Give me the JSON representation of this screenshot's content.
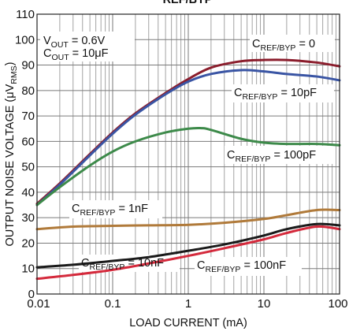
{
  "chart_data": {
    "type": "line",
    "title": "REF/BYP",
    "xlabel": "LOAD CURRENT (mA)",
    "ylabel": {
      "main": "OUTPUT NOISE VOLTAGE (μV",
      "sub": "RMS",
      "tail": ")"
    },
    "xscale": "log",
    "xlim": [
      0.01,
      100
    ],
    "ylim": [
      0,
      110
    ],
    "x_ticks": [
      {
        "value": 0.01,
        "label": "0.01"
      },
      {
        "value": 0.1,
        "label": "0.1"
      },
      {
        "value": 1,
        "label": "1"
      },
      {
        "value": 10,
        "label": "10"
      },
      {
        "value": 100,
        "label": "100"
      }
    ],
    "y_ticks": [
      {
        "value": 0,
        "label": "0"
      },
      {
        "value": 10,
        "label": "10"
      },
      {
        "value": 20,
        "label": "20"
      },
      {
        "value": 30,
        "label": "30"
      },
      {
        "value": 40,
        "label": "40"
      },
      {
        "value": 50,
        "label": "50"
      },
      {
        "value": 60,
        "label": "60"
      },
      {
        "value": 70,
        "label": "70"
      },
      {
        "value": 80,
        "label": "80"
      },
      {
        "value": 90,
        "label": "90"
      },
      {
        "value": 100,
        "label": "100"
      },
      {
        "value": 110,
        "label": "110"
      }
    ],
    "grid": true,
    "conditions": [
      {
        "main": "V",
        "sub": "OUT",
        "tail": " = 0.6V"
      },
      {
        "main": "C",
        "sub": "OUT",
        "tail": " = 10μF"
      }
    ],
    "series": [
      {
        "label": {
          "main": "C",
          "sub": "REF/BYP",
          "tail": " = 0"
        },
        "color": "#8b1d2c",
        "points": [
          [
            0.01,
            35.5
          ],
          [
            0.02,
            43.5
          ],
          [
            0.05,
            55
          ],
          [
            0.1,
            63.5
          ],
          [
            0.2,
            71
          ],
          [
            0.5,
            79
          ],
          [
            1,
            84.5
          ],
          [
            2,
            89
          ],
          [
            5,
            91.5
          ],
          [
            10,
            92
          ],
          [
            20,
            92
          ],
          [
            50,
            91
          ],
          [
            100,
            89.5
          ]
        ]
      },
      {
        "label": {
          "main": "C",
          "sub": "REF/BYP",
          "tail": " = 10pF"
        },
        "color": "#3a55a4",
        "points": [
          [
            0.01,
            35
          ],
          [
            0.02,
            43
          ],
          [
            0.05,
            54.5
          ],
          [
            0.1,
            63
          ],
          [
            0.2,
            70.5
          ],
          [
            0.5,
            78.5
          ],
          [
            1,
            83.5
          ],
          [
            2,
            86.5
          ],
          [
            5,
            88
          ],
          [
            10,
            87.5
          ],
          [
            20,
            86.5
          ],
          [
            50,
            85.5
          ],
          [
            100,
            84
          ]
        ]
      },
      {
        "label": {
          "main": "C",
          "sub": "REF/BYP",
          "tail": " = 100pF"
        },
        "color": "#3d8a4a",
        "points": [
          [
            0.01,
            35
          ],
          [
            0.02,
            42
          ],
          [
            0.05,
            50.5
          ],
          [
            0.1,
            56
          ],
          [
            0.2,
            60
          ],
          [
            0.5,
            63.5
          ],
          [
            1,
            65
          ],
          [
            1.5,
            65.2
          ],
          [
            2,
            64.5
          ],
          [
            5,
            61
          ],
          [
            10,
            59.5
          ],
          [
            20,
            59
          ],
          [
            50,
            59
          ],
          [
            100,
            58.5
          ]
        ]
      },
      {
        "label": {
          "main": "C",
          "sub": "REF/BYP",
          "tail": " = 1nF"
        },
        "color": "#b07a3a",
        "points": [
          [
            0.01,
            25.5
          ],
          [
            0.03,
            26.5
          ],
          [
            0.1,
            26.8
          ],
          [
            0.3,
            27
          ],
          [
            1,
            27.2
          ],
          [
            3,
            28
          ],
          [
            10,
            29.5
          ],
          [
            20,
            31
          ],
          [
            50,
            33
          ],
          [
            100,
            33
          ]
        ]
      },
      {
        "label": {
          "main": "C",
          "sub": "REF/BYP",
          "tail": " = 10nF"
        },
        "color": "#1a1a1a",
        "points": [
          [
            0.01,
            10.5
          ],
          [
            0.03,
            11.5
          ],
          [
            0.1,
            13
          ],
          [
            0.3,
            14.5
          ],
          [
            1,
            17
          ],
          [
            3,
            19.5
          ],
          [
            10,
            23
          ],
          [
            20,
            25.5
          ],
          [
            50,
            27.5
          ],
          [
            100,
            27
          ]
        ]
      },
      {
        "label": {
          "main": "C",
          "sub": "REF/BYP",
          "tail": " = 100nF"
        },
        "color": "#d42a3c",
        "points": [
          [
            0.01,
            6
          ],
          [
            0.03,
            7.5
          ],
          [
            0.1,
            9.5
          ],
          [
            0.3,
            12
          ],
          [
            1,
            15
          ],
          [
            3,
            18
          ],
          [
            10,
            21.5
          ],
          [
            20,
            24
          ],
          [
            50,
            26.5
          ],
          [
            100,
            25.5
          ]
        ]
      }
    ]
  }
}
